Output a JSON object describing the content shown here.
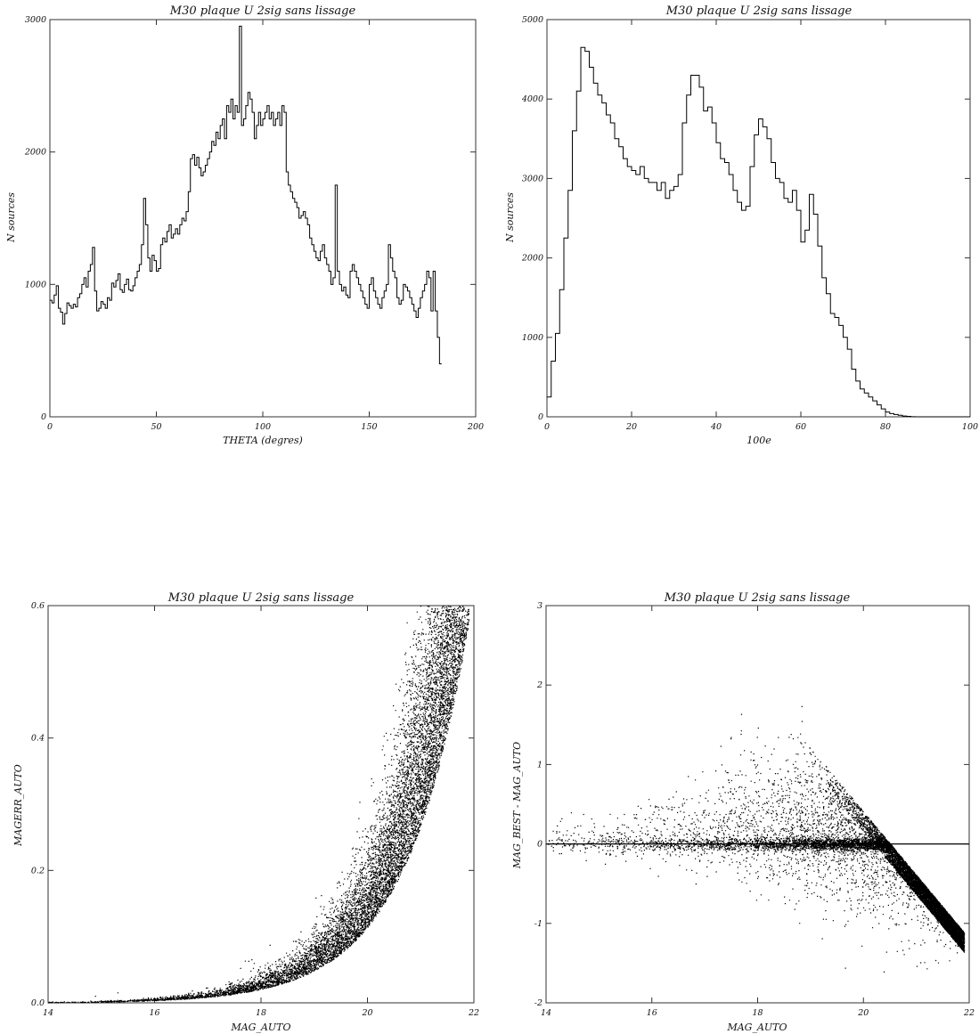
{
  "chart_data": [
    {
      "type": "histogram",
      "title": "M30 plaque U    2sig sans lissage",
      "xlabel": "THETA (degres)",
      "ylabel": "N sources",
      "xlim": [
        0,
        200
      ],
      "ylim": [
        0,
        3000
      ],
      "xticks": [
        0,
        50,
        100,
        150,
        200
      ],
      "yticks": [
        0,
        1000,
        2000,
        3000
      ],
      "bin_width": 1,
      "x_start": 0,
      "values": [
        880,
        860,
        920,
        990,
        820,
        790,
        700,
        780,
        860,
        840,
        820,
        850,
        830,
        900,
        930,
        1000,
        1050,
        980,
        1100,
        1150,
        1280,
        950,
        800,
        820,
        870,
        850,
        820,
        900,
        880,
        1010,
        980,
        1030,
        1080,
        960,
        940,
        1000,
        1040,
        960,
        950,
        990,
        1050,
        1100,
        1150,
        1300,
        1650,
        1450,
        1200,
        1100,
        1220,
        1180,
        1100,
        1120,
        1300,
        1350,
        1320,
        1400,
        1450,
        1350,
        1380,
        1420,
        1380,
        1450,
        1500,
        1480,
        1550,
        1700,
        1950,
        1980,
        1900,
        1960,
        1880,
        1820,
        1850,
        1900,
        1950,
        2000,
        2080,
        2050,
        2150,
        2100,
        2200,
        2250,
        2100,
        2350,
        2300,
        2400,
        2250,
        2350,
        2300,
        2950,
        2200,
        2250,
        2350,
        2450,
        2400,
        2300,
        2100,
        2200,
        2300,
        2200,
        2250,
        2300,
        2350,
        2250,
        2300,
        2200,
        2250,
        2300,
        2200,
        2350,
        2300,
        1850,
        1750,
        1700,
        1650,
        1620,
        1580,
        1500,
        1520,
        1550,
        1500,
        1450,
        1350,
        1300,
        1250,
        1200,
        1180,
        1250,
        1300,
        1200,
        1150,
        1100,
        1000,
        1050,
        1750,
        1100,
        1000,
        950,
        980,
        920,
        900,
        1100,
        1150,
        1100,
        1050,
        1000,
        950,
        900,
        850,
        820,
        1000,
        1050,
        950,
        900,
        850,
        820,
        900,
        950,
        1000,
        1300,
        1200,
        1100,
        1050,
        900,
        850,
        880,
        1000,
        980,
        950,
        900,
        850,
        800,
        750,
        820,
        900,
        950,
        1000,
        1100,
        1050,
        800,
        1100,
        800,
        600,
        400
      ]
    },
    {
      "type": "histogram",
      "title": "M30 plaque U    2sig sans lissage",
      "xlabel": "100e",
      "ylabel": "N sources",
      "xlim": [
        0,
        100
      ],
      "ylim": [
        0,
        5000
      ],
      "xticks": [
        0,
        20,
        40,
        60,
        80,
        100
      ],
      "yticks": [
        0,
        1000,
        2000,
        3000,
        4000,
        5000
      ],
      "bin_width": 1,
      "x_start": 0,
      "values": [
        250,
        700,
        1050,
        1600,
        2250,
        2850,
        3600,
        4100,
        4650,
        4600,
        4400,
        4200,
        4050,
        3950,
        3800,
        3700,
        3500,
        3400,
        3250,
        3150,
        3100,
        3050,
        3150,
        3000,
        2950,
        2950,
        2850,
        2950,
        2750,
        2850,
        2900,
        3050,
        3700,
        4050,
        4300,
        4300,
        4150,
        3850,
        3900,
        3700,
        3450,
        3250,
        3200,
        3050,
        2850,
        2700,
        2600,
        2650,
        3150,
        3550,
        3750,
        3650,
        3500,
        3200,
        3000,
        2950,
        2750,
        2700,
        2850,
        2600,
        2200,
        2350,
        2800,
        2550,
        2150,
        1750,
        1550,
        1300,
        1250,
        1150,
        1000,
        850,
        600,
        450,
        350,
        300,
        250,
        200,
        150,
        100,
        60,
        40,
        30,
        20,
        10,
        5,
        2,
        0,
        0,
        0,
        0,
        0,
        0,
        0,
        0,
        0,
        0,
        0,
        0,
        0
      ]
    },
    {
      "type": "scatter",
      "title": "M30 plaque U    2sig sans lissage",
      "xlabel": "MAG_AUTO",
      "ylabel": "MAGERR_AUTO",
      "xlim": [
        14,
        22
      ],
      "ylim": [
        0,
        0.6
      ],
      "xticks": [
        14,
        16,
        18,
        20,
        22
      ],
      "yticks": [
        0.0,
        0.2,
        0.4,
        0.6
      ],
      "model": "err = 0.0025 * exp(0.85 * (mag - 15.5))"
    },
    {
      "type": "scatter",
      "title": "M30 plaque U    2sig sans lissage",
      "xlabel": "MAG_AUTO",
      "ylabel": "MAG_BEST - MAG_AUTO",
      "xlim": [
        14,
        22
      ],
      "ylim": [
        -2,
        3
      ],
      "xticks": [
        14,
        16,
        18,
        20,
        22
      ],
      "yticks": [
        -2,
        -1,
        0,
        1,
        2,
        3
      ],
      "reference_line": 0
    }
  ]
}
